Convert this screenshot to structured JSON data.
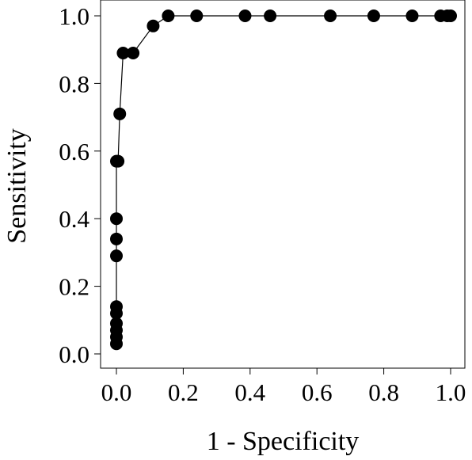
{
  "chart_data": {
    "type": "line",
    "title": "",
    "xlabel": "1 - Specificity",
    "ylabel": "Sensitivity",
    "xlim": [
      0.0,
      1.0
    ],
    "ylim": [
      0.0,
      1.0
    ],
    "xticks": [
      "0.0",
      "0.2",
      "0.4",
      "0.6",
      "0.8",
      "1.0"
    ],
    "yticks": [
      "0.0",
      "0.2",
      "0.4",
      "0.6",
      "0.8",
      "1.0"
    ],
    "grid": false,
    "legend": "none",
    "series": [
      {
        "x": [
          0.0,
          0.0,
          0.0,
          0.0,
          0.0,
          0.0,
          0.0,
          0.0,
          0.0,
          0.0,
          0.005,
          0.01,
          0.02,
          0.05,
          0.11,
          0.155,
          0.24,
          0.385,
          0.46,
          0.64,
          0.77,
          0.885,
          0.97,
          0.99,
          1.0
        ],
        "y": [
          0.03,
          0.05,
          0.07,
          0.09,
          0.12,
          0.14,
          0.29,
          0.34,
          0.4,
          0.57,
          0.57,
          0.71,
          0.89,
          0.89,
          0.97,
          1.0,
          1.0,
          1.0,
          1.0,
          1.0,
          1.0,
          1.0,
          1.0,
          1.0,
          1.0
        ],
        "color": "#000000",
        "marker": "filled-circle"
      }
    ]
  }
}
